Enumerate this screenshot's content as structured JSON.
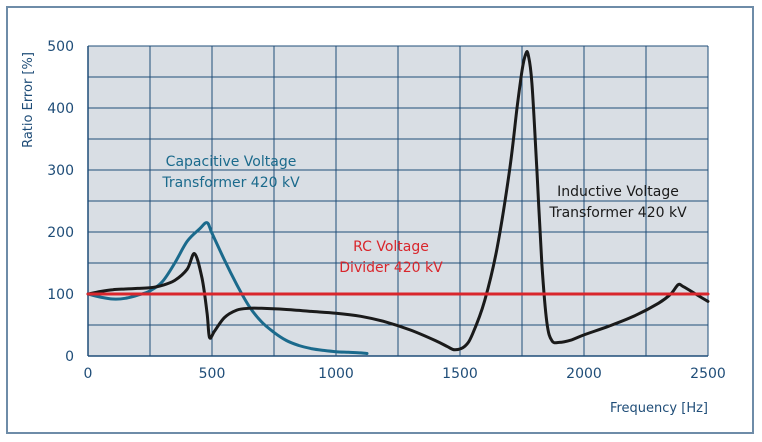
{
  "chart_data": {
    "type": "line",
    "xlabel": "Frequency [Hz]",
    "ylabel": "Ratio Error [%]",
    "xlim": [
      0,
      2500
    ],
    "ylim": [
      0,
      500
    ],
    "x_ticks": [
      0,
      500,
      1000,
      1500,
      2000,
      2500
    ],
    "y_ticks": [
      0,
      100,
      200,
      300,
      400,
      500
    ],
    "grid": true,
    "plot_background": "#d9dee4",
    "grid_color": "#1f4d78",
    "series": [
      {
        "key": "cvt",
        "color": "#1b6a8c",
        "points": [
          [
            0,
            100
          ],
          [
            50,
            95
          ],
          [
            100,
            92
          ],
          [
            150,
            93
          ],
          [
            200,
            98
          ],
          [
            250,
            105
          ],
          [
            300,
            120
          ],
          [
            350,
            150
          ],
          [
            400,
            185
          ],
          [
            450,
            205
          ],
          [
            480,
            215
          ],
          [
            500,
            198
          ],
          [
            550,
            155
          ],
          [
            600,
            115
          ],
          [
            650,
            80
          ],
          [
            700,
            55
          ],
          [
            750,
            38
          ],
          [
            800,
            25
          ],
          [
            850,
            17
          ],
          [
            900,
            12
          ],
          [
            950,
            9
          ],
          [
            1000,
            7
          ],
          [
            1050,
            6
          ],
          [
            1100,
            5
          ],
          [
            1125,
            4
          ]
        ]
      },
      {
        "key": "rc",
        "color": "#d9262c",
        "points": [
          [
            0,
            100
          ],
          [
            2500,
            100
          ]
        ]
      },
      {
        "key": "ivt",
        "color": "#1a1a1a",
        "points": [
          [
            0,
            100
          ],
          [
            50,
            104
          ],
          [
            100,
            107
          ],
          [
            150,
            108
          ],
          [
            200,
            109
          ],
          [
            250,
            110
          ],
          [
            300,
            114
          ],
          [
            350,
            122
          ],
          [
            400,
            140
          ],
          [
            430,
            165
          ],
          [
            460,
            125
          ],
          [
            480,
            70
          ],
          [
            490,
            30
          ],
          [
            510,
            40
          ],
          [
            550,
            62
          ],
          [
            600,
            74
          ],
          [
            650,
            77
          ],
          [
            700,
            77
          ],
          [
            800,
            75
          ],
          [
            900,
            72
          ],
          [
            1000,
            69
          ],
          [
            1100,
            64
          ],
          [
            1200,
            55
          ],
          [
            1300,
            42
          ],
          [
            1400,
            25
          ],
          [
            1450,
            15
          ],
          [
            1480,
            10
          ],
          [
            1520,
            16
          ],
          [
            1550,
            35
          ],
          [
            1600,
            90
          ],
          [
            1650,
            175
          ],
          [
            1700,
            300
          ],
          [
            1730,
            400
          ],
          [
            1750,
            460
          ],
          [
            1765,
            487
          ],
          [
            1775,
            486
          ],
          [
            1790,
            440
          ],
          [
            1810,
            300
          ],
          [
            1830,
            150
          ],
          [
            1850,
            55
          ],
          [
            1870,
            25
          ],
          [
            1900,
            22
          ],
          [
            1950,
            26
          ],
          [
            2000,
            34
          ],
          [
            2100,
            48
          ],
          [
            2200,
            64
          ],
          [
            2300,
            85
          ],
          [
            2350,
            100
          ],
          [
            2380,
            115
          ],
          [
            2400,
            112
          ],
          [
            2450,
            100
          ],
          [
            2500,
            88
          ]
        ]
      }
    ],
    "annotations": [
      {
        "key": "cvt_label",
        "lines": [
          "Capacitive Voltage",
          "Transformer 420 kV"
        ],
        "color": "#1b6a8c"
      },
      {
        "key": "rc_label",
        "lines": [
          "RC Voltage",
          "Divider 420 kV"
        ],
        "color": "#d9262c"
      },
      {
        "key": "ivt_label",
        "lines": [
          "Inductive Voltage",
          "Transformer 420 kV"
        ],
        "color": "#1a1a1a"
      }
    ]
  }
}
